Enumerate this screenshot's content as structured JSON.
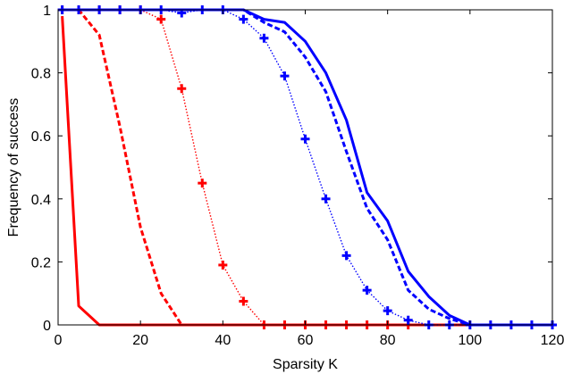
{
  "chart_data": {
    "type": "line",
    "title": "",
    "xlabel": "Sparsity K",
    "ylabel": "Frequency of success",
    "xlim": [
      0,
      120
    ],
    "ylim": [
      0,
      1
    ],
    "xticks": [
      0,
      20,
      40,
      60,
      80,
      100,
      120
    ],
    "yticks": [
      0,
      0.2,
      0.4,
      0.6,
      0.8,
      1
    ],
    "grid": false,
    "legend": "none",
    "series": [
      {
        "color": "#ff0000",
        "style": "solid",
        "marker": "none",
        "x": [
          1,
          5,
          10,
          15,
          20,
          25,
          30,
          35,
          40,
          45,
          50,
          55,
          60,
          65,
          70,
          75,
          80,
          85,
          90,
          95,
          100,
          105,
          110,
          115,
          120
        ],
        "y": [
          0.98,
          0.06,
          0,
          0,
          0,
          0,
          0,
          0,
          0,
          0,
          0,
          0,
          0,
          0,
          0,
          0,
          0,
          0,
          0,
          0,
          0,
          0,
          0,
          0,
          0
        ]
      },
      {
        "color": "#ff0000",
        "style": "dashed",
        "marker": "none",
        "x": [
          1,
          5,
          10,
          15,
          20,
          25,
          30,
          35,
          40,
          45,
          50,
          55,
          60,
          65,
          70,
          75,
          80,
          85,
          90,
          95,
          100,
          105,
          110,
          115,
          120
        ],
        "y": [
          1,
          1,
          0.92,
          0.63,
          0.31,
          0.1,
          0,
          0,
          0,
          0,
          0,
          0,
          0,
          0,
          0,
          0,
          0,
          0,
          0,
          0,
          0,
          0,
          0,
          0,
          0
        ]
      },
      {
        "color": "#ff0000",
        "style": "dotted",
        "marker": "plus",
        "x": [
          1,
          5,
          10,
          15,
          20,
          25,
          30,
          35,
          40,
          45,
          50,
          55,
          60,
          65,
          70,
          75,
          80,
          85
        ],
        "y": [
          1,
          1,
          1,
          1,
          1,
          0.97,
          0.75,
          0.45,
          0.19,
          0.075,
          0,
          0,
          0,
          0,
          0,
          0,
          0,
          0
        ]
      },
      {
        "color": "#0000ff",
        "style": "solid",
        "marker": "none",
        "x": [
          1,
          5,
          10,
          15,
          20,
          25,
          30,
          35,
          40,
          45,
          50,
          55,
          60,
          65,
          70,
          75,
          80,
          85,
          90,
          95,
          100,
          105,
          110,
          115,
          120
        ],
        "y": [
          1,
          1,
          1,
          1,
          1,
          1,
          1,
          1,
          1,
          1,
          0.97,
          0.96,
          0.9,
          0.8,
          0.65,
          0.42,
          0.33,
          0.17,
          0.09,
          0.03,
          0,
          0,
          0,
          0,
          0
        ]
      },
      {
        "color": "#0000ff",
        "style": "dashed",
        "marker": "none",
        "x": [
          1,
          5,
          10,
          15,
          20,
          25,
          30,
          35,
          40,
          45,
          50,
          55,
          60,
          65,
          70,
          75,
          80,
          85,
          90,
          95,
          100,
          105,
          110,
          115,
          120
        ],
        "y": [
          1,
          1,
          1,
          1,
          1,
          1,
          1,
          1,
          1,
          1,
          0.96,
          0.93,
          0.85,
          0.74,
          0.55,
          0.37,
          0.27,
          0.11,
          0.05,
          0.02,
          0,
          0,
          0,
          0,
          0
        ]
      },
      {
        "color": "#0000ff",
        "style": "dotted",
        "marker": "plus",
        "x": [
          1,
          5,
          10,
          15,
          20,
          25,
          30,
          35,
          40,
          45,
          50,
          55,
          60,
          65,
          70,
          75,
          80,
          85,
          90,
          95,
          100,
          105,
          110,
          115,
          120
        ],
        "y": [
          1,
          1,
          1,
          1,
          1,
          1,
          0.99,
          1,
          1,
          0.97,
          0.91,
          0.79,
          0.59,
          0.4,
          0.22,
          0.11,
          0.045,
          0.015,
          0,
          0,
          0,
          0,
          0,
          0,
          0
        ]
      }
    ]
  }
}
